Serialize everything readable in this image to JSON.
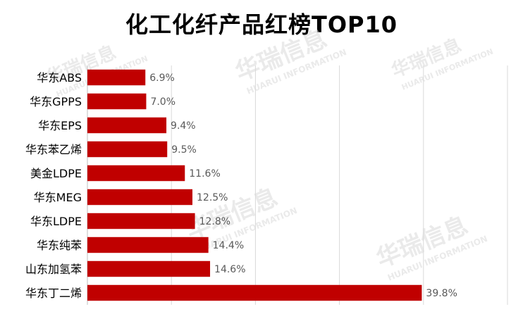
{
  "title": "化工化纤产品红榜TOP10",
  "watermark": {
    "cn": "华瑞信息",
    "en": "HUARUI INFORMATION"
  },
  "chart_data": {
    "type": "bar",
    "orientation": "horizontal",
    "title": "化工化纤产品红榜TOP10",
    "categories": [
      "华东ABS",
      "华东GPPS",
      "华东EPS",
      "华东苯乙烯",
      "美金LDPE",
      "华东MEG",
      "华东LDPE",
      "华东纯苯",
      "山东加氢苯",
      "华东丁二烯"
    ],
    "values": [
      6.9,
      7.0,
      9.4,
      9.5,
      11.6,
      12.5,
      12.8,
      14.4,
      14.6,
      39.8
    ],
    "labels": [
      "6.9%",
      "7.0%",
      "9.4%",
      "9.5%",
      "11.6%",
      "12.5%",
      "12.8%",
      "14.4%",
      "14.6%",
      "39.8%"
    ],
    "unit": "%",
    "xlim": [
      0,
      50
    ],
    "grid": true,
    "bar_color": "#C00000"
  }
}
